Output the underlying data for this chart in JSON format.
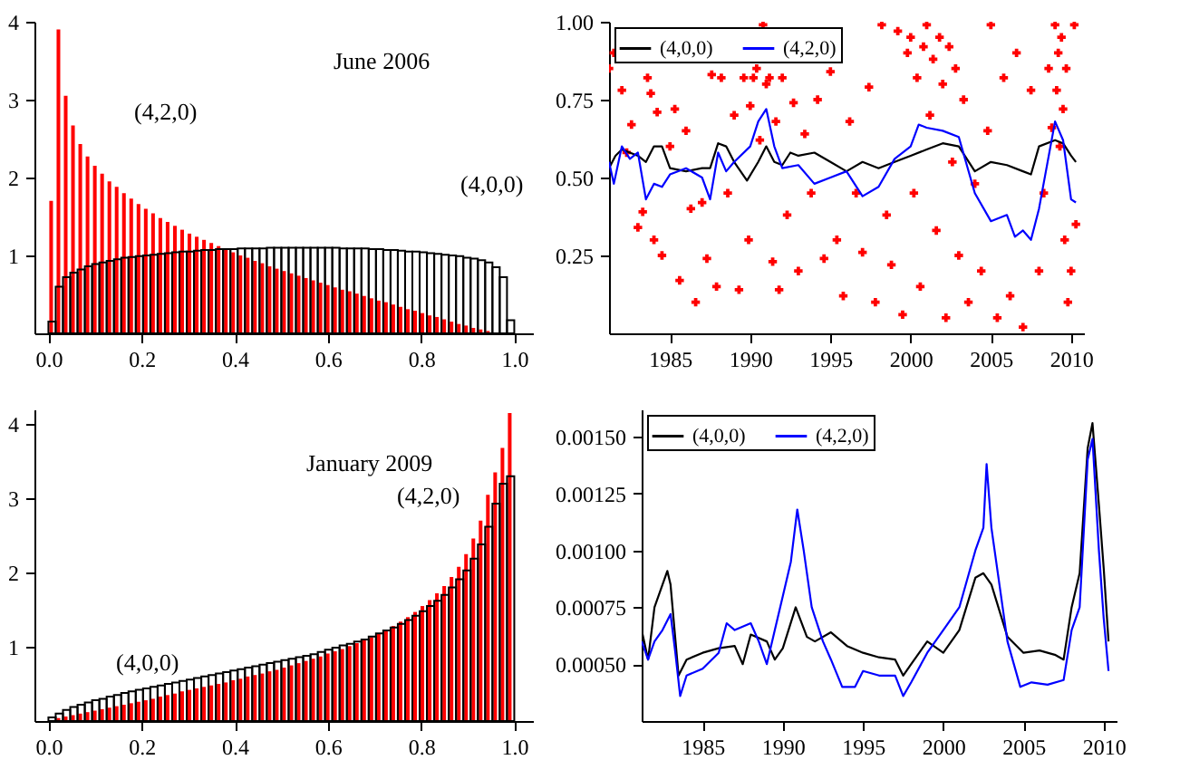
{
  "chart_data": [
    {
      "type": "histogram",
      "annotations": [
        "June 2006"
      ],
      "grid": false,
      "bins": [
        0,
        0.015625,
        0.03125,
        0.046875,
        0.0625,
        0.078125,
        0.09375,
        0.109375,
        0.125,
        0.140625,
        0.15625,
        0.171875,
        0.1875,
        0.203125,
        0.21875,
        0.234375,
        0.25,
        0.265625,
        0.28125,
        0.296875,
        0.3125,
        0.328125,
        0.34375,
        0.359375,
        0.375,
        0.390625,
        0.40625,
        0.421875,
        0.4375,
        0.453125,
        0.46875,
        0.484375,
        0.5,
        0.515625,
        0.53125,
        0.546875,
        0.5625,
        0.578125,
        0.59375,
        0.609375,
        0.625,
        0.640625,
        0.65625,
        0.671875,
        0.6875,
        0.703125,
        0.71875,
        0.734375,
        0.75,
        0.765625,
        0.78125,
        0.796875,
        0.8125,
        0.828125,
        0.84375,
        0.859375,
        0.875,
        0.890625,
        0.90625,
        0.921875,
        0.9375,
        0.953125,
        0.96875,
        0.984375,
        1
      ],
      "xlim": [
        -0.03,
        1.04
      ],
      "xticks": [
        {
          "value": 0,
          "label": "0.0"
        },
        {
          "value": 0.2,
          "label": "0.2"
        },
        {
          "value": 0.4,
          "label": "0.4"
        },
        {
          "value": 0.6,
          "label": "0.6"
        },
        {
          "value": 0.8,
          "label": "0.8"
        },
        {
          "value": 1,
          "label": "1.0"
        }
      ],
      "ylim": [
        0,
        4
      ],
      "yticks": [
        1,
        2,
        3,
        4
      ],
      "series": [
        {
          "name": "(4,2,0)",
          "color": "#ff0000",
          "values": [
            1.7,
            3.9,
            3.05,
            2.67,
            2.43,
            2.27,
            2.15,
            2.05,
            1.95,
            1.88,
            1.8,
            1.73,
            1.66,
            1.6,
            1.54,
            1.48,
            1.43,
            1.38,
            1.33,
            1.28,
            1.24,
            1.2,
            1.16,
            1.12,
            1.08,
            1.04,
            1.0,
            0.97,
            0.93,
            0.9,
            0.86,
            0.83,
            0.8,
            0.77,
            0.74,
            0.71,
            0.68,
            0.65,
            0.62,
            0.59,
            0.56,
            0.54,
            0.51,
            0.48,
            0.45,
            0.42,
            0.4,
            0.37,
            0.34,
            0.31,
            0.29,
            0.26,
            0.23,
            0.21,
            0.18,
            0.15,
            0.12,
            0.1,
            0.07,
            0.05,
            0.03,
            null,
            null,
            null
          ]
        },
        {
          "name": "(4,0,0)",
          "color": "#000000",
          "values": [
            0.15,
            0.6,
            0.72,
            0.78,
            0.82,
            0.86,
            0.89,
            0.91,
            0.93,
            0.95,
            0.97,
            0.98,
            0.99,
            1.0,
            1.01,
            1.02,
            1.03,
            1.04,
            1.05,
            1.05,
            1.06,
            1.07,
            1.07,
            1.08,
            1.08,
            1.08,
            1.09,
            1.09,
            1.09,
            1.09,
            1.1,
            1.1,
            1.1,
            1.1,
            1.1,
            1.1,
            1.1,
            1.1,
            1.1,
            1.1,
            1.09,
            1.09,
            1.09,
            1.09,
            1.08,
            1.08,
            1.07,
            1.07,
            1.06,
            1.05,
            1.05,
            1.04,
            1.03,
            1.02,
            1.01,
            1.0,
            0.99,
            0.97,
            0.96,
            0.94,
            0.91,
            0.85,
            0.72,
            0.17
          ]
        }
      ]
    },
    {
      "type": "line",
      "legend": "top left",
      "grid": false,
      "xlim": [
        1981.2,
        2010.8
      ],
      "xticks": [
        1985,
        1990,
        1995,
        2000,
        2005,
        2010
      ],
      "ylim": [
        0,
        1
      ],
      "yticks": [
        {
          "value": 0.25,
          "label": "0.25"
        },
        {
          "value": 0.5,
          "label": "0.50"
        },
        {
          "value": 0.75,
          "label": "0.75"
        },
        {
          "value": 1,
          "label": "1.00"
        }
      ],
      "series": [
        {
          "type": "scatter",
          "marker": "cross",
          "color": "#ff0000",
          "x": [
            1981.2,
            1981.5,
            1982,
            1982.3,
            1982.6,
            1983,
            1983.3,
            1983.6,
            1983.8,
            1984,
            1984.2,
            1984.5,
            1985,
            1985.3,
            1985.6,
            1986,
            1986.3,
            1986.6,
            1987,
            1987.3,
            1987.6,
            1987.9,
            1988.2,
            1988.6,
            1989,
            1989.3,
            1989.6,
            1989.9,
            1990,
            1990.2,
            1990.4,
            1990.6,
            1990.8,
            1991,
            1991.2,
            1991.4,
            1991.6,
            1991.8,
            1992,
            1992.3,
            1992.7,
            1993,
            1993.4,
            1993.8,
            1994.2,
            1994.6,
            1995,
            1995.4,
            1995.8,
            1996.2,
            1996.6,
            1997,
            1997.4,
            1997.8,
            1998.2,
            1998.5,
            1998.8,
            1999.2,
            1999.5,
            1999.8,
            2000,
            2000.2,
            2000.4,
            2000.6,
            2000.8,
            2001,
            2001.2,
            2001.4,
            2001.6,
            2001.8,
            2002,
            2002.2,
            2002.4,
            2002.6,
            2002.8,
            2003,
            2003.3,
            2003.6,
            2004,
            2004.4,
            2004.8,
            2005,
            2005.4,
            2005.8,
            2006.2,
            2006.6,
            2007,
            2007.5,
            2008,
            2008.3,
            2008.6,
            2008.8,
            2009,
            2009.1,
            2009.2,
            2009.3,
            2009.4,
            2009.5,
            2009.6,
            2009.7,
            2009.8,
            2010,
            2010.2,
            2010.3
          ],
          "values": [
            0.85,
            0.9,
            0.78,
            0.58,
            0.67,
            0.34,
            0.39,
            0.82,
            0.77,
            0.3,
            0.71,
            0.25,
            0.6,
            0.72,
            0.17,
            0.65,
            0.4,
            0.1,
            0.42,
            0.24,
            0.83,
            0.15,
            0.82,
            0.45,
            0.7,
            0.14,
            0.82,
            0.3,
            0.73,
            0.82,
            0.85,
            0.62,
            0.99,
            0.8,
            0.82,
            0.23,
            0.68,
            0.14,
            0.82,
            0.38,
            0.74,
            0.2,
            0.64,
            0.45,
            0.75,
            0.24,
            0.84,
            0.3,
            0.12,
            0.68,
            0.45,
            0.26,
            0.79,
            0.1,
            0.99,
            0.38,
            0.22,
            0.97,
            0.06,
            0.9,
            0.95,
            0.45,
            0.82,
            0.15,
            0.92,
            0.99,
            0.7,
            0.88,
            0.33,
            0.95,
            0.8,
            0.05,
            0.92,
            0.55,
            0.85,
            0.25,
            0.75,
            0.1,
            0.48,
            0.2,
            0.65,
            0.99,
            0.05,
            0.82,
            0.12,
            0.9,
            0.02,
            0.78,
            0.2,
            0.45,
            0.85,
            0.66,
            0.99,
            0.78,
            0.9,
            0.6,
            0.95,
            0.72,
            0.3,
            0.85,
            0.1,
            0.2,
            0.99,
            0.35
          ]
        },
        {
          "name": "(4,0,0)",
          "color": "#000000",
          "x": [
            1981.2,
            1981.6,
            1982,
            1982.5,
            1983,
            1983.5,
            1984,
            1984.5,
            1985,
            1986,
            1987,
            1987.5,
            1988,
            1988.5,
            1989,
            1989.8,
            1990.5,
            1991,
            1991.5,
            1992,
            1992.5,
            1993,
            1994,
            1995,
            1996,
            1997,
            1998,
            1999,
            2000,
            2001,
            2002,
            2003,
            2004,
            2005,
            2006,
            2007,
            2007.5,
            2008,
            2009,
            2009.5,
            2010,
            2010.3
          ],
          "values": [
            0.53,
            0.57,
            0.59,
            0.58,
            0.57,
            0.55,
            0.6,
            0.6,
            0.53,
            0.52,
            0.53,
            0.53,
            0.61,
            0.6,
            0.55,
            0.49,
            0.55,
            0.6,
            0.55,
            0.54,
            0.58,
            0.57,
            0.58,
            0.55,
            0.52,
            0.55,
            0.53,
            0.55,
            0.57,
            0.59,
            0.61,
            0.6,
            0.52,
            0.55,
            0.54,
            0.52,
            0.51,
            0.6,
            0.62,
            0.61,
            0.57,
            0.55
          ]
        },
        {
          "name": "(4,2,0)",
          "color": "#0000ff",
          "x": [
            1981.2,
            1981.5,
            1982,
            1982.5,
            1983,
            1983.5,
            1984,
            1984.5,
            1985,
            1986,
            1987,
            1987.5,
            1988,
            1988.5,
            1989,
            1990,
            1990.5,
            1991,
            1991.5,
            1992,
            1993,
            1994,
            1995,
            1996,
            1997,
            1998,
            1999,
            2000,
            2000.5,
            2001,
            2002,
            2003,
            2004,
            2005,
            2006,
            2006.5,
            2007,
            2007.5,
            2008,
            2009,
            2009.5,
            2010,
            2010.3
          ],
          "values": [
            0.55,
            0.48,
            0.6,
            0.56,
            0.58,
            0.43,
            0.48,
            0.47,
            0.51,
            0.53,
            0.5,
            0.43,
            0.58,
            0.52,
            0.55,
            0.6,
            0.68,
            0.72,
            0.6,
            0.53,
            0.54,
            0.48,
            0.5,
            0.52,
            0.44,
            0.47,
            0.56,
            0.6,
            0.67,
            0.66,
            0.65,
            0.63,
            0.45,
            0.36,
            0.38,
            0.31,
            0.33,
            0.3,
            0.4,
            0.68,
            0.62,
            0.43,
            0.42
          ]
        }
      ]
    },
    {
      "type": "histogram",
      "annotations": [
        "January 2009"
      ],
      "grid": false,
      "bins": [
        0,
        0.015625,
        0.03125,
        0.046875,
        0.0625,
        0.078125,
        0.09375,
        0.109375,
        0.125,
        0.140625,
        0.15625,
        0.171875,
        0.1875,
        0.203125,
        0.21875,
        0.234375,
        0.25,
        0.265625,
        0.28125,
        0.296875,
        0.3125,
        0.328125,
        0.34375,
        0.359375,
        0.375,
        0.390625,
        0.40625,
        0.421875,
        0.4375,
        0.453125,
        0.46875,
        0.484375,
        0.5,
        0.515625,
        0.53125,
        0.546875,
        0.5625,
        0.578125,
        0.59375,
        0.609375,
        0.625,
        0.640625,
        0.65625,
        0.671875,
        0.6875,
        0.703125,
        0.71875,
        0.734375,
        0.75,
        0.765625,
        0.78125,
        0.796875,
        0.8125,
        0.828125,
        0.84375,
        0.859375,
        0.875,
        0.890625,
        0.90625,
        0.921875,
        0.9375,
        0.953125,
        0.96875,
        0.984375,
        1
      ],
      "xlim": [
        -0.03,
        1.04
      ],
      "xticks": [
        {
          "value": 0,
          "label": "0.0"
        },
        {
          "value": 0.2,
          "label": "0.2"
        },
        {
          "value": 0.4,
          "label": "0.4"
        },
        {
          "value": 0.6,
          "label": "0.6"
        },
        {
          "value": 0.8,
          "label": "0.8"
        },
        {
          "value": 1,
          "label": "1.0"
        }
      ],
      "ylim": [
        0,
        4.2
      ],
      "yticks": [
        1,
        2,
        3,
        4
      ],
      "series": [
        {
          "name": "(4,2,0)",
          "color": "#ff0000",
          "values": [
            null,
            0.04,
            0.06,
            0.08,
            0.1,
            0.12,
            0.14,
            0.16,
            0.18,
            0.2,
            0.22,
            0.24,
            0.26,
            0.28,
            0.3,
            0.33,
            0.35,
            0.37,
            0.4,
            0.42,
            0.44,
            0.46,
            0.48,
            0.5,
            0.52,
            0.55,
            0.57,
            0.6,
            0.62,
            0.64,
            0.67,
            0.69,
            0.72,
            0.75,
            0.78,
            0.81,
            0.84,
            0.87,
            0.91,
            0.94,
            0.97,
            1.01,
            1.05,
            1.09,
            1.13,
            1.18,
            1.23,
            1.28,
            1.34,
            1.4,
            1.47,
            1.55,
            1.63,
            1.72,
            1.82,
            1.94,
            2.08,
            2.25,
            2.46,
            2.7,
            3.05,
            3.35,
            3.68,
            4.15
          ]
        },
        {
          "name": "(4,0,0)",
          "color": "#000000",
          "values": [
            0.05,
            0.1,
            0.15,
            0.19,
            0.22,
            0.25,
            0.28,
            0.3,
            0.33,
            0.35,
            0.38,
            0.4,
            0.42,
            0.44,
            0.46,
            0.48,
            0.5,
            0.52,
            0.54,
            0.56,
            0.58,
            0.6,
            0.62,
            0.64,
            0.66,
            0.68,
            0.7,
            0.72,
            0.74,
            0.76,
            0.78,
            0.8,
            0.82,
            0.84,
            0.86,
            0.88,
            0.9,
            0.93,
            0.96,
            0.99,
            1.02,
            1.04,
            1.07,
            1.1,
            1.14,
            1.18,
            1.22,
            1.26,
            1.31,
            1.36,
            1.42,
            1.48,
            1.55,
            1.62,
            1.7,
            1.8,
            1.91,
            2.03,
            2.19,
            2.38,
            2.62,
            2.93,
            3.2,
            3.3
          ]
        }
      ]
    },
    {
      "type": "line",
      "legend": "top left",
      "grid": false,
      "xlim": [
        1981.2,
        2010.8
      ],
      "xticks": [
        1985,
        1990,
        1995,
        2000,
        2005,
        2010
      ],
      "ylim": [
        0.00025,
        0.00162
      ],
      "yticks": [
        {
          "value": 0.0005,
          "label": "0.00050"
        },
        {
          "value": 0.00075,
          "label": "0.00075"
        },
        {
          "value": 0.001,
          "label": "0.00100"
        },
        {
          "value": 0.00125,
          "label": "0.00125"
        },
        {
          "value": 0.0015,
          "label": "0.00150"
        }
      ],
      "series": [
        {
          "name": "(4,0,0)",
          "color": "#000000",
          "x": [
            1981.2,
            1981.6,
            1982,
            1982.5,
            1982.8,
            1983,
            1983.5,
            1984,
            1985,
            1986,
            1987,
            1987.5,
            1988,
            1989,
            1989.5,
            1990,
            1990.8,
            1991.5,
            1992,
            1993,
            1994,
            1995,
            1996,
            1997,
            1997.5,
            1998,
            1999,
            2000,
            2001,
            2002,
            2002.5,
            2003,
            2004,
            2005,
            2006,
            2007,
            2007.5,
            2008,
            2008.5,
            2009,
            2009.3,
            2009.7,
            2010,
            2010.3
          ],
          "values": [
            0.00065,
            0.00052,
            0.00075,
            0.00085,
            0.00091,
            0.00085,
            0.00045,
            0.00052,
            0.00055,
            0.00057,
            0.00058,
            0.0005,
            0.00063,
            0.0006,
            0.00052,
            0.00057,
            0.00075,
            0.00062,
            0.0006,
            0.00064,
            0.00058,
            0.00055,
            0.00053,
            0.00052,
            0.00045,
            0.0005,
            0.0006,
            0.00055,
            0.00065,
            0.00088,
            0.0009,
            0.00085,
            0.00062,
            0.00055,
            0.00056,
            0.00054,
            0.00052,
            0.00075,
            0.0009,
            0.00145,
            0.00156,
            0.0012,
            0.00092,
            0.0006
          ]
        },
        {
          "name": "(4,2,0)",
          "color": "#0000ff",
          "x": [
            1981.2,
            1981.6,
            1982,
            1982.5,
            1983,
            1983.3,
            1983.6,
            1984,
            1985,
            1986,
            1986.5,
            1987,
            1988,
            1988.5,
            1989,
            1989.5,
            1990,
            1990.5,
            1990.9,
            1991.3,
            1991.8,
            1992.5,
            1993,
            1993.7,
            1994.5,
            1995,
            1996,
            1997,
            1997.5,
            1998,
            1999,
            2000,
            2001,
            2002,
            2002.5,
            2002.7,
            2003,
            2003.5,
            2004,
            2004.8,
            2005.5,
            2006.5,
            2007.5,
            2008,
            2008.5,
            2009,
            2009.3,
            2009.7,
            2010,
            2010.3
          ],
          "values": [
            0.0006,
            0.00052,
            0.0006,
            0.00065,
            0.00072,
            0.00055,
            0.00036,
            0.00045,
            0.00048,
            0.00055,
            0.00068,
            0.00065,
            0.00068,
            0.0006,
            0.0005,
            0.00065,
            0.0008,
            0.00095,
            0.00118,
            0.001,
            0.00075,
            0.0006,
            0.00052,
            0.0004,
            0.0004,
            0.00047,
            0.00045,
            0.00045,
            0.00036,
            0.00042,
            0.00055,
            0.00065,
            0.00075,
            0.001,
            0.0011,
            0.00138,
            0.0011,
            0.00085,
            0.0006,
            0.0004,
            0.00042,
            0.00041,
            0.00043,
            0.00065,
            0.00075,
            0.0014,
            0.00149,
            0.001,
            0.0007,
            0.00047
          ]
        }
      ]
    }
  ]
}
